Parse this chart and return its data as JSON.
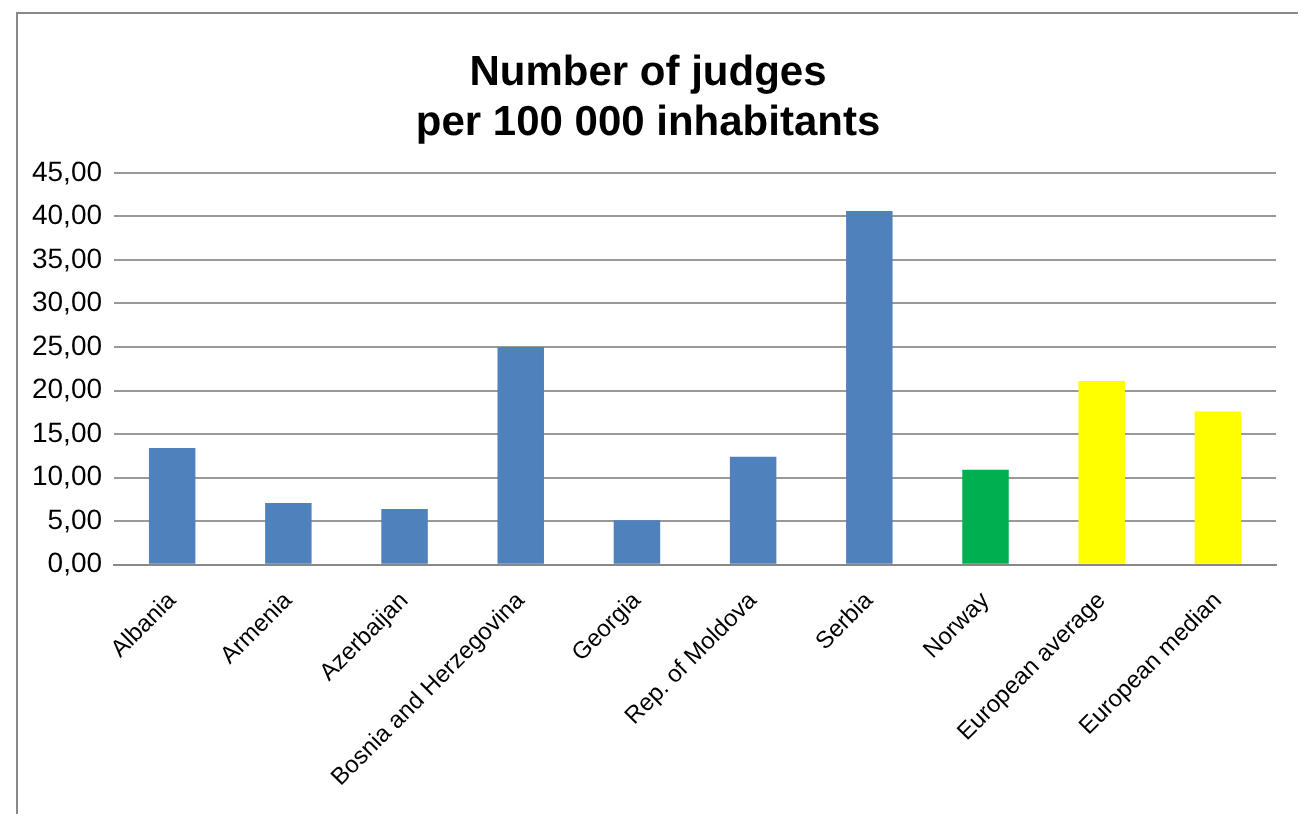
{
  "chart_data": {
    "type": "bar",
    "title": [
      "Number of judges",
      "per 100 000 inhabitants"
    ],
    "categories": [
      "Albania",
      "Armenia",
      "Azerbaijan",
      "Bosnia and Herzegovina",
      "Georgia",
      "Rep. of Moldova",
      "Serbia",
      "Norway",
      "European average",
      "European median"
    ],
    "values": [
      13.4,
      7.1,
      6.4,
      25.0,
      5.1,
      12.4,
      40.6,
      10.9,
      21.1,
      17.6
    ],
    "colors": [
      "#4f81bd",
      "#4f81bd",
      "#4f81bd",
      "#4f81bd",
      "#4f81bd",
      "#4f81bd",
      "#4f81bd",
      "#00b050",
      "#ffff00",
      "#ffff00"
    ],
    "ylim": [
      0,
      45
    ],
    "yticks": [
      {
        "value": 0,
        "label": "0,00"
      },
      {
        "value": 5,
        "label": "5,00"
      },
      {
        "value": 10,
        "label": "10,00"
      },
      {
        "value": 15,
        "label": "15,00"
      },
      {
        "value": 20,
        "label": "20,00"
      },
      {
        "value": 25,
        "label": "25,00"
      },
      {
        "value": 30,
        "label": "30,00"
      },
      {
        "value": 35,
        "label": "35,00"
      },
      {
        "value": 40,
        "label": "40,00"
      },
      {
        "value": 45,
        "label": "45,00"
      }
    ],
    "grid": "y",
    "legend": false
  }
}
